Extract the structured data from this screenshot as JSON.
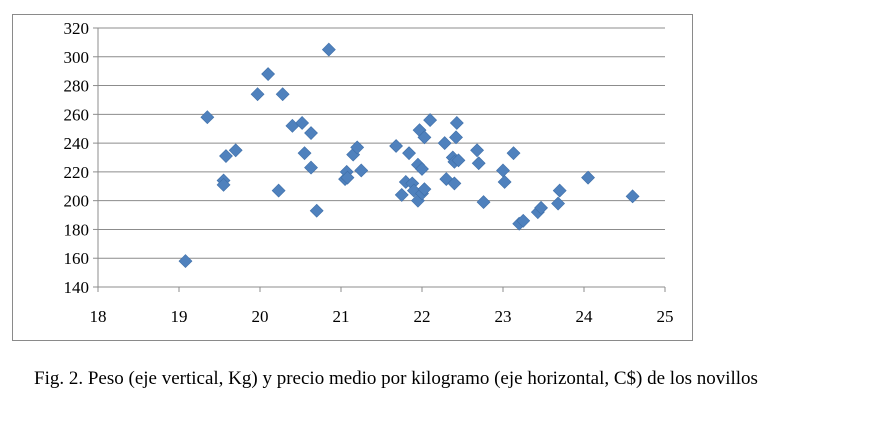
{
  "chart_data": {
    "type": "scatter",
    "title": "",
    "xlabel": "",
    "ylabel": "",
    "xlim": [
      18,
      25
    ],
    "ylim": [
      140,
      320
    ],
    "xticks": [
      "18",
      "19",
      "20",
      "21",
      "22",
      "23",
      "24",
      "25"
    ],
    "yticks": [
      "140",
      "160",
      "180",
      "200",
      "220",
      "240",
      "260",
      "280",
      "300",
      "320"
    ],
    "grid": "horizontal",
    "legend": "none",
    "marker": "diamond",
    "marker_color": "#4f81bd",
    "points": [
      {
        "x": 19.08,
        "y": 158
      },
      {
        "x": 19.35,
        "y": 258
      },
      {
        "x": 19.55,
        "y": 214
      },
      {
        "x": 19.55,
        "y": 211
      },
      {
        "x": 19.58,
        "y": 231
      },
      {
        "x": 19.7,
        "y": 235
      },
      {
        "x": 19.97,
        "y": 274
      },
      {
        "x": 20.1,
        "y": 288
      },
      {
        "x": 20.23,
        "y": 207
      },
      {
        "x": 20.28,
        "y": 274
      },
      {
        "x": 20.4,
        "y": 252
      },
      {
        "x": 20.52,
        "y": 254
      },
      {
        "x": 20.55,
        "y": 233
      },
      {
        "x": 20.63,
        "y": 223
      },
      {
        "x": 20.63,
        "y": 247
      },
      {
        "x": 20.7,
        "y": 193
      },
      {
        "x": 20.85,
        "y": 305
      },
      {
        "x": 21.05,
        "y": 215
      },
      {
        "x": 21.07,
        "y": 220
      },
      {
        "x": 21.08,
        "y": 216
      },
      {
        "x": 21.15,
        "y": 232
      },
      {
        "x": 21.2,
        "y": 237
      },
      {
        "x": 21.25,
        "y": 221
      },
      {
        "x": 21.68,
        "y": 238
      },
      {
        "x": 21.75,
        "y": 204
      },
      {
        "x": 21.8,
        "y": 213
      },
      {
        "x": 21.84,
        "y": 233
      },
      {
        "x": 21.88,
        "y": 212
      },
      {
        "x": 21.9,
        "y": 207
      },
      {
        "x": 21.95,
        "y": 200
      },
      {
        "x": 21.95,
        "y": 225
      },
      {
        "x": 21.97,
        "y": 249
      },
      {
        "x": 22.0,
        "y": 222
      },
      {
        "x": 22.0,
        "y": 205
      },
      {
        "x": 22.03,
        "y": 208
      },
      {
        "x": 22.03,
        "y": 244
      },
      {
        "x": 22.1,
        "y": 256
      },
      {
        "x": 22.28,
        "y": 240
      },
      {
        "x": 22.3,
        "y": 215
      },
      {
        "x": 22.38,
        "y": 230
      },
      {
        "x": 22.4,
        "y": 227
      },
      {
        "x": 22.4,
        "y": 212
      },
      {
        "x": 22.42,
        "y": 244
      },
      {
        "x": 22.43,
        "y": 254
      },
      {
        "x": 22.45,
        "y": 228
      },
      {
        "x": 22.68,
        "y": 235
      },
      {
        "x": 22.7,
        "y": 226
      },
      {
        "x": 22.76,
        "y": 199
      },
      {
        "x": 23.0,
        "y": 221
      },
      {
        "x": 23.02,
        "y": 213
      },
      {
        "x": 23.13,
        "y": 233
      },
      {
        "x": 23.2,
        "y": 184
      },
      {
        "x": 23.25,
        "y": 186
      },
      {
        "x": 23.43,
        "y": 192
      },
      {
        "x": 23.47,
        "y": 195
      },
      {
        "x": 23.68,
        "y": 198
      },
      {
        "x": 23.7,
        "y": 207
      },
      {
        "x": 24.05,
        "y": 216
      },
      {
        "x": 24.6,
        "y": 203
      }
    ]
  },
  "caption": {
    "text": "Fig. 2. Peso (eje vertical, Kg) y precio medio por kilogramo (eje horizontal, C$)  de los novillos"
  }
}
